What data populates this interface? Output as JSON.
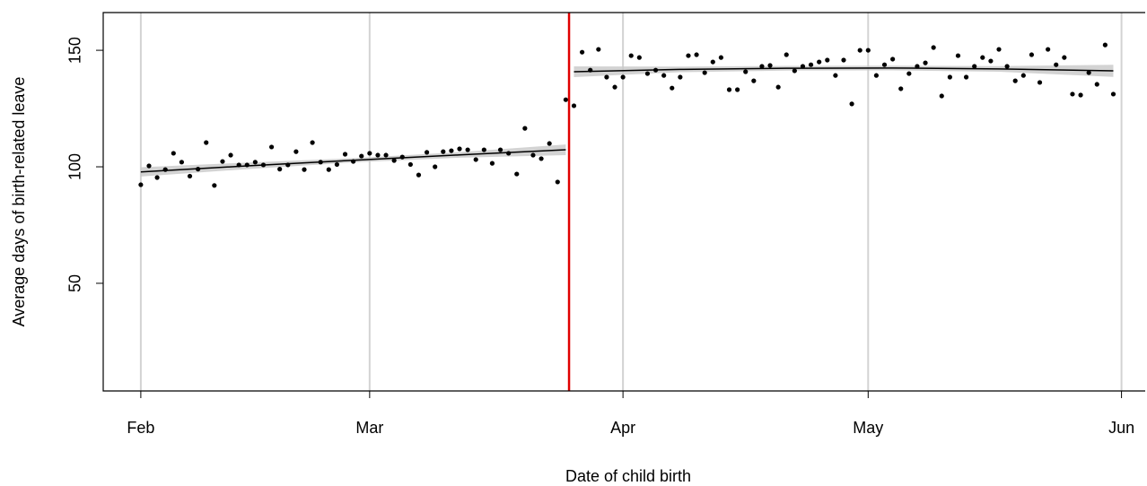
{
  "chart_data": {
    "type": "scatter",
    "xlabel": "Date of child birth",
    "ylabel": "Average days of birth-related leave",
    "xlim": [
      -4.6,
      122.9
    ],
    "ylim": [
      3.8,
      166.2
    ],
    "xticks": [
      {
        "value": 0,
        "label": "Feb"
      },
      {
        "value": 28,
        "label": "Mar"
      },
      {
        "value": 59,
        "label": "Apr"
      },
      {
        "value": 89,
        "label": "May"
      },
      {
        "value": 120,
        "label": "Jun"
      }
    ],
    "yticks": [
      50,
      100,
      150
    ],
    "grid": true,
    "color": "#000000",
    "x": [
      0,
      1,
      2,
      3,
      4,
      5,
      6,
      7,
      8,
      9,
      10,
      11,
      12,
      13,
      14,
      15,
      16,
      17,
      18,
      19,
      20,
      21,
      22,
      23,
      24,
      25,
      26,
      27,
      28,
      29,
      30,
      31,
      32,
      33,
      34,
      35,
      36,
      37,
      38,
      39,
      40,
      41,
      42,
      43,
      44,
      45,
      46,
      47,
      48,
      49,
      50,
      51,
      52,
      53,
      54,
      55,
      56,
      57,
      58,
      59,
      60,
      61,
      62,
      63,
      64,
      65,
      66,
      67,
      68,
      69,
      70,
      71,
      72,
      73,
      74,
      75,
      76,
      77,
      78,
      79,
      80,
      81,
      82,
      83,
      84,
      85,
      86,
      87,
      88,
      89,
      90,
      91,
      92,
      93,
      94,
      95,
      96,
      97,
      98,
      99,
      100,
      101,
      102,
      103,
      104,
      105,
      106,
      107,
      108,
      109,
      110,
      111,
      112,
      113,
      114,
      115,
      116,
      117,
      118,
      119
    ],
    "values": [
      92.3,
      100.4,
      95.4,
      98.8,
      105.8,
      102,
      96,
      99,
      110.4,
      92,
      102.3,
      105,
      100.8,
      100.8,
      102,
      100.8,
      108.5,
      99,
      100.8,
      106.5,
      98.8,
      110.4,
      102,
      98.8,
      101,
      105.4,
      102.3,
      104.6,
      105.8,
      105,
      105,
      102.7,
      104.2,
      101,
      96.5,
      106.2,
      100,
      106.5,
      106.9,
      107.7,
      107.3,
      103.1,
      107.3,
      101.5,
      107.3,
      105.8,
      96.9,
      116.5,
      105,
      103.5,
      110,
      93.5,
      128.8,
      126.2,
      149.2,
      141.5,
      150.4,
      138.5,
      134.2,
      138.5,
      147.7,
      146.9,
      140,
      141.5,
      139.2,
      133.8,
      138.5,
      147.7,
      148.1,
      140.4,
      145,
      146.9,
      133.1,
      133.1,
      140.8,
      136.9,
      143.1,
      143.5,
      134.2,
      148.1,
      141.2,
      143.1,
      143.8,
      145,
      145.8,
      139.2,
      145.8,
      127,
      150,
      150,
      139.2,
      143.8,
      146.2,
      133.5,
      140,
      143.1,
      144.6,
      151.2,
      130.4,
      138.5,
      147.7,
      138.5,
      143.1,
      146.9,
      145.4,
      150.4,
      143.1,
      136.9,
      139.2,
      148.1,
      136.2,
      150.4,
      143.8,
      146.9,
      131.2,
      130.8,
      140.4,
      135.4,
      152.3,
      131.2
    ],
    "cutoff": {
      "x": 52.4,
      "color": "#e00000"
    },
    "fits": [
      {
        "x": [
          0,
          13,
          26,
          39,
          52
        ],
        "values": [
          97.8,
          100.4,
          102.8,
          105.1,
          107.3
        ],
        "lower": [
          95.8,
          99.0,
          101.9,
          103.9,
          105.0
        ],
        "upper": [
          99.8,
          101.8,
          103.7,
          106.3,
          109.6
        ]
      },
      {
        "x": [
          53,
          66,
          79,
          92,
          105,
          119
        ],
        "values": [
          140.8,
          141.8,
          142.3,
          142.4,
          142.0,
          141.2
        ],
        "lower": [
          138.5,
          140.6,
          141.3,
          141.4,
          140.8,
          138.6
        ],
        "upper": [
          143.1,
          143.0,
          143.3,
          143.4,
          143.2,
          143.8
        ]
      }
    ]
  }
}
